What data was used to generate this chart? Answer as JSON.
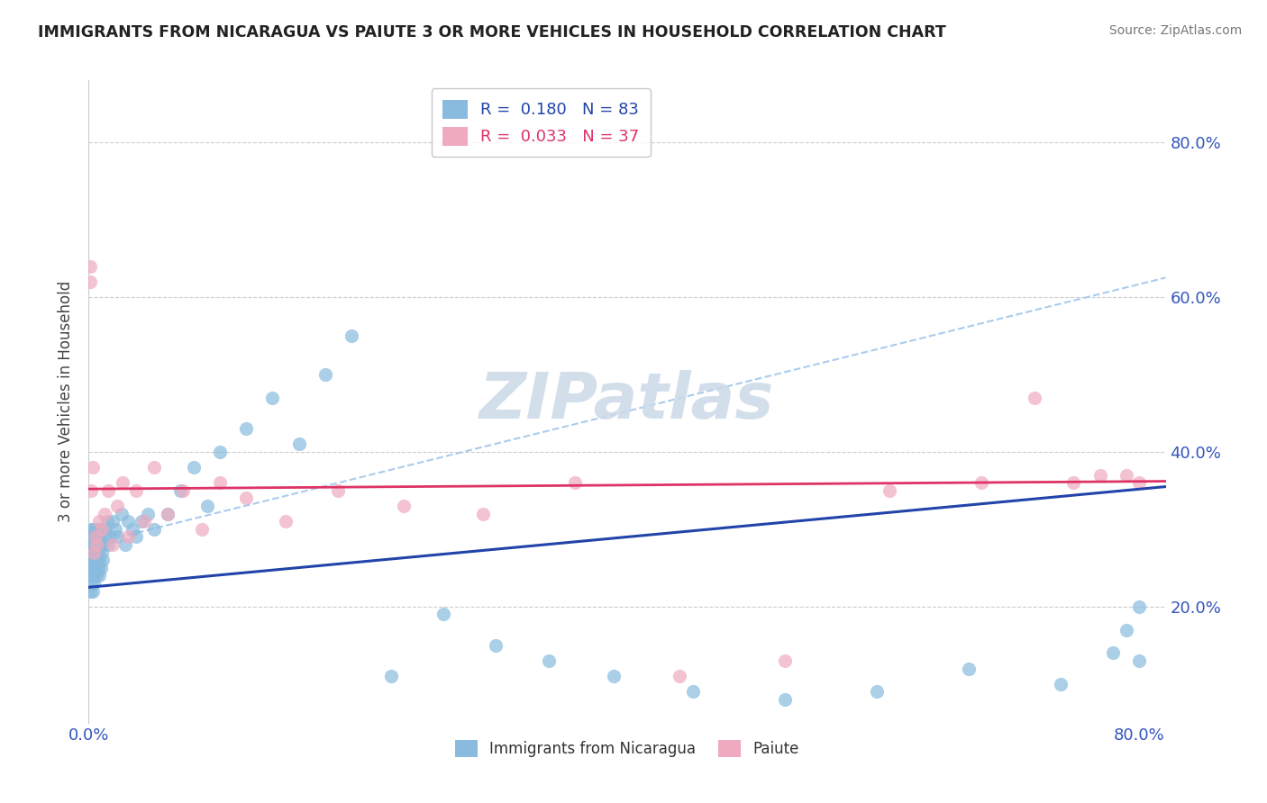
{
  "title": "IMMIGRANTS FROM NICARAGUA VS PAIUTE 3 OR MORE VEHICLES IN HOUSEHOLD CORRELATION CHART",
  "source": "Source: ZipAtlas.com",
  "ylabel": "3 or more Vehicles in Household",
  "xlim": [
    0.0,
    0.82
  ],
  "ylim": [
    0.05,
    0.88
  ],
  "xtick_left": "0.0%",
  "xtick_right": "80.0%",
  "ytick_labels": [
    "20.0%",
    "40.0%",
    "60.0%",
    "80.0%"
  ],
  "ytick_vals": [
    0.2,
    0.4,
    0.6,
    0.8
  ],
  "legend1_r": "0.180",
  "legend1_n": "83",
  "legend2_r": "0.033",
  "legend2_n": "37",
  "blue_scatter_color": "#88bbdd",
  "pink_scatter_color": "#f0aabf",
  "blue_line_color": "#2244aa",
  "pink_line_color": "#dd3366",
  "dashed_line_color": "#aaccee",
  "grid_color": "#cccccc",
  "title_color": "#222222",
  "axis_label_color": "#444444",
  "tick_color": "#3355bb",
  "watermark_text": "ZIPatlas",
  "watermark_color": "#ccd9e8",
  "legend_blue_text_color": "#2244aa",
  "legend_pink_text_color": "#dd3366",
  "blue_line_x0": 0.0,
  "blue_line_y0": 0.225,
  "blue_line_x1": 0.82,
  "blue_line_y1": 0.355,
  "pink_line_x0": 0.0,
  "pink_line_y0": 0.352,
  "pink_line_x1": 0.82,
  "pink_line_y1": 0.362,
  "dash_line_x0": 0.0,
  "dash_line_y0": 0.28,
  "dash_line_x1": 0.82,
  "dash_line_y1": 0.625,
  "blue_x": [
    0.001,
    0.001,
    0.001,
    0.001,
    0.001,
    0.002,
    0.002,
    0.002,
    0.002,
    0.002,
    0.002,
    0.002,
    0.003,
    0.003,
    0.003,
    0.003,
    0.003,
    0.003,
    0.004,
    0.004,
    0.004,
    0.004,
    0.004,
    0.005,
    0.005,
    0.005,
    0.005,
    0.006,
    0.006,
    0.006,
    0.006,
    0.007,
    0.007,
    0.007,
    0.008,
    0.008,
    0.008,
    0.009,
    0.009,
    0.01,
    0.01,
    0.011,
    0.011,
    0.012,
    0.013,
    0.014,
    0.015,
    0.016,
    0.018,
    0.02,
    0.022,
    0.025,
    0.028,
    0.03,
    0.033,
    0.036,
    0.04,
    0.045,
    0.05,
    0.06,
    0.07,
    0.08,
    0.09,
    0.1,
    0.12,
    0.14,
    0.16,
    0.18,
    0.2,
    0.23,
    0.27,
    0.31,
    0.35,
    0.4,
    0.46,
    0.53,
    0.6,
    0.67,
    0.74,
    0.78,
    0.79,
    0.8,
    0.8
  ],
  "blue_y": [
    0.27,
    0.25,
    0.24,
    0.22,
    0.29,
    0.26,
    0.28,
    0.24,
    0.3,
    0.23,
    0.27,
    0.25,
    0.26,
    0.24,
    0.28,
    0.22,
    0.3,
    0.25,
    0.27,
    0.23,
    0.29,
    0.26,
    0.24,
    0.28,
    0.25,
    0.27,
    0.3,
    0.26,
    0.29,
    0.24,
    0.28,
    0.25,
    0.27,
    0.3,
    0.26,
    0.29,
    0.24,
    0.28,
    0.25,
    0.27,
    0.3,
    0.28,
    0.26,
    0.29,
    0.3,
    0.31,
    0.28,
    0.29,
    0.31,
    0.3,
    0.29,
    0.32,
    0.28,
    0.31,
    0.3,
    0.29,
    0.31,
    0.32,
    0.3,
    0.32,
    0.35,
    0.38,
    0.33,
    0.4,
    0.43,
    0.47,
    0.41,
    0.5,
    0.55,
    0.11,
    0.19,
    0.15,
    0.13,
    0.11,
    0.09,
    0.08,
    0.09,
    0.12,
    0.1,
    0.14,
    0.17,
    0.2,
    0.13
  ],
  "pink_x": [
    0.001,
    0.001,
    0.002,
    0.003,
    0.004,
    0.005,
    0.006,
    0.008,
    0.01,
    0.012,
    0.015,
    0.018,
    0.022,
    0.026,
    0.03,
    0.036,
    0.042,
    0.05,
    0.06,
    0.072,
    0.086,
    0.1,
    0.12,
    0.15,
    0.19,
    0.24,
    0.3,
    0.37,
    0.45,
    0.53,
    0.61,
    0.68,
    0.72,
    0.75,
    0.77,
    0.79,
    0.8
  ],
  "pink_y": [
    0.62,
    0.64,
    0.35,
    0.38,
    0.27,
    0.29,
    0.28,
    0.31,
    0.3,
    0.32,
    0.35,
    0.28,
    0.33,
    0.36,
    0.29,
    0.35,
    0.31,
    0.38,
    0.32,
    0.35,
    0.3,
    0.36,
    0.34,
    0.31,
    0.35,
    0.33,
    0.32,
    0.36,
    0.11,
    0.13,
    0.35,
    0.36,
    0.47,
    0.36,
    0.37,
    0.37,
    0.36
  ]
}
